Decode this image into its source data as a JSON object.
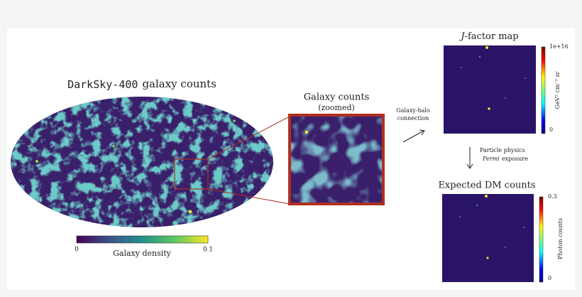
{
  "sky_map": {
    "title_mono": "DarkSky-400",
    "title_rest": "galaxy counts",
    "colorbar": {
      "label": "Galaxy density",
      "min": "0",
      "max": "0.1"
    }
  },
  "zoom_panel": {
    "title": "Galaxy counts",
    "subtitle": "(zoomed)"
  },
  "step_1": {
    "line_1": "Galaxy-halo",
    "line_2": "connection"
  },
  "j_factor_map": {
    "title_italic": "J",
    "title_rest": "-factor map",
    "colorbar": {
      "label": "GeV² cm⁻⁵ sr",
      "max": "1e+16",
      "min": "0"
    }
  },
  "step_2": {
    "line_1": "Particle physics",
    "line_2_italic": "Fermi",
    "line_2_rest": "exposure"
  },
  "dm_counts_map": {
    "title": "Expected DM counts",
    "colorbar": {
      "label": "Photon counts",
      "max": "0.3",
      "min": "0"
    }
  }
}
